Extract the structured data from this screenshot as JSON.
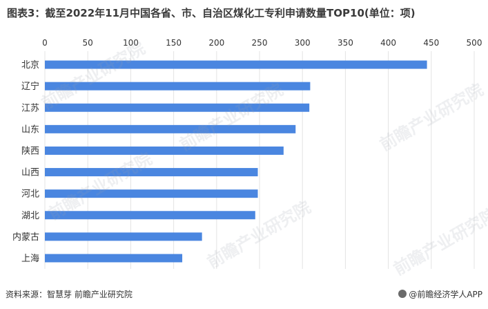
{
  "title": "图表3：截至2022年11月中国各省、市、自治区煤化工专利申请数量TOP10(单位：项)",
  "source": "资料来源：智慧芽 前瞻产业研究院",
  "brand": "@前瞻经济学人APP",
  "watermark": "前瞻产业研究院",
  "colors": {
    "bar": "#4a86e0",
    "grid": "#e3e3e3",
    "text": "#333333"
  },
  "chart_data": {
    "type": "bar",
    "orientation": "horizontal",
    "categories": [
      "北京",
      "辽宁",
      "江苏",
      "山东",
      "陕西",
      "山西",
      "河北",
      "湖北",
      "内蒙古",
      "上海"
    ],
    "values": [
      445,
      309,
      308,
      292,
      278,
      248,
      248,
      245,
      183,
      160
    ],
    "xlim": [
      0,
      500
    ],
    "xticks": [
      0,
      50,
      100,
      150,
      200,
      250,
      300,
      350,
      400,
      450,
      500
    ],
    "xaxis_position": "top",
    "grid": true
  }
}
